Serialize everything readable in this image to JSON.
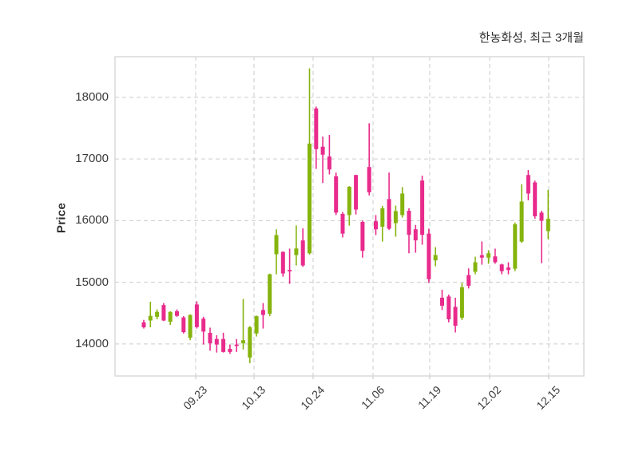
{
  "header": {
    "title": "한농화성, 최근 3개월"
  },
  "chart_data": {
    "type": "candlestick",
    "title": "한농화성, 최근 3개월",
    "xlabel": "",
    "ylabel": "Price",
    "grid": "dashed",
    "legend_position": "none",
    "y_ticks": [
      14000,
      15000,
      16000,
      17000,
      18000
    ],
    "ylim": [
      13480,
      18660
    ],
    "x_ticks": [
      {
        "label": "09.23",
        "i": 7.83
      },
      {
        "label": "10.13",
        "i": 16.63
      },
      {
        "label": "10.24",
        "i": 25.54
      },
      {
        "label": "11.06",
        "i": 34.58
      },
      {
        "label": "11.19",
        "i": 43.13
      },
      {
        "label": "12.02",
        "i": 52.17
      },
      {
        "label": "12.15",
        "i": 61.08
      }
    ],
    "colors": {
      "up": "#86b40e",
      "down": "#e82b8c",
      "grid": "#cccccc",
      "spine": "#d4d4d4",
      "text": "#3a3a3a"
    },
    "candles_format": [
      "open",
      "high",
      "low",
      "close"
    ],
    "candles": [
      [
        14350,
        14390,
        14250,
        14270
      ],
      [
        14380,
        14685,
        14270,
        14455
      ],
      [
        14440,
        14560,
        14400,
        14520
      ],
      [
        14630,
        14662,
        14370,
        14380
      ],
      [
        14360,
        14530,
        14307,
        14520
      ],
      [
        14530,
        14560,
        14440,
        14455
      ],
      [
        14430,
        14450,
        14170,
        14190
      ],
      [
        14100,
        14480,
        14060,
        14470
      ],
      [
        14640,
        14690,
        14250,
        14273
      ],
      [
        14410,
        14440,
        13990,
        14200
      ],
      [
        14180,
        14264,
        13890,
        14010
      ],
      [
        14080,
        14140,
        13860,
        13990
      ],
      [
        14080,
        14182,
        13860,
        13870
      ],
      [
        13920,
        13991,
        13840,
        13870
      ],
      [
        13990,
        14078,
        13870,
        13980
      ],
      [
        14010,
        14730,
        13910,
        14060
      ],
      [
        13780,
        14290,
        13688,
        14270
      ],
      [
        14170,
        14460,
        14120,
        14450
      ],
      [
        14550,
        14662,
        14250,
        14470
      ],
      [
        14490,
        15140,
        14450,
        15130
      ],
      [
        15455,
        15860,
        15130,
        15766
      ],
      [
        15494,
        15500,
        15090,
        15143
      ],
      [
        15200,
        15545,
        14975,
        15190
      ],
      [
        15442,
        15922,
        15273,
        15549
      ],
      [
        15679,
        15875,
        15250,
        15273
      ],
      [
        15470,
        18470,
        15450,
        17250
      ],
      [
        17820,
        17850,
        16840,
        17160
      ],
      [
        17200,
        17364,
        16610,
        17070
      ],
      [
        17040,
        17390,
        16750,
        16830
      ],
      [
        16720,
        16780,
        16090,
        16130
      ],
      [
        16110,
        16140,
        15727,
        15790
      ],
      [
        16090,
        16560,
        15920,
        16550
      ],
      [
        16740,
        16745,
        16100,
        16180
      ],
      [
        15980,
        16000,
        15400,
        15510
      ],
      [
        16870,
        17580,
        16410,
        16460
      ],
      [
        15990,
        16090,
        15766,
        15860
      ],
      [
        15900,
        16240,
        15660,
        16200
      ],
      [
        16350,
        16780,
        15850,
        15870
      ],
      [
        15960,
        16243,
        15740,
        16155
      ],
      [
        16090,
        16545,
        16050,
        16440
      ],
      [
        16160,
        16200,
        15470,
        15770
      ],
      [
        15860,
        15930,
        15480,
        15680
      ],
      [
        16650,
        16730,
        15610,
        15770
      ],
      [
        15790,
        15870,
        14990,
        15050
      ],
      [
        15355,
        15570,
        15260,
        15442
      ],
      [
        14750,
        14880,
        14550,
        14620
      ],
      [
        14770,
        14800,
        14350,
        14400
      ],
      [
        14600,
        14750,
        14186,
        14295
      ],
      [
        14425,
        14990,
        14390,
        14920
      ],
      [
        15117,
        15225,
        14900,
        14944
      ],
      [
        15170,
        15416,
        15130,
        15325
      ],
      [
        15440,
        15662,
        15286,
        15400
      ],
      [
        15400,
        15520,
        15299,
        15470
      ],
      [
        15420,
        15546,
        15300,
        15325
      ],
      [
        15290,
        15300,
        15130,
        15180
      ],
      [
        15240,
        15325,
        15130,
        15200
      ],
      [
        15220,
        15970,
        15180,
        15940
      ],
      [
        15660,
        16590,
        15640,
        16310
      ],
      [
        16740,
        16820,
        16330,
        16440
      ],
      [
        16620,
        16650,
        16030,
        16070
      ],
      [
        16130,
        16160,
        15310,
        16000
      ],
      [
        15830,
        16500,
        15700,
        16030
      ]
    ]
  }
}
